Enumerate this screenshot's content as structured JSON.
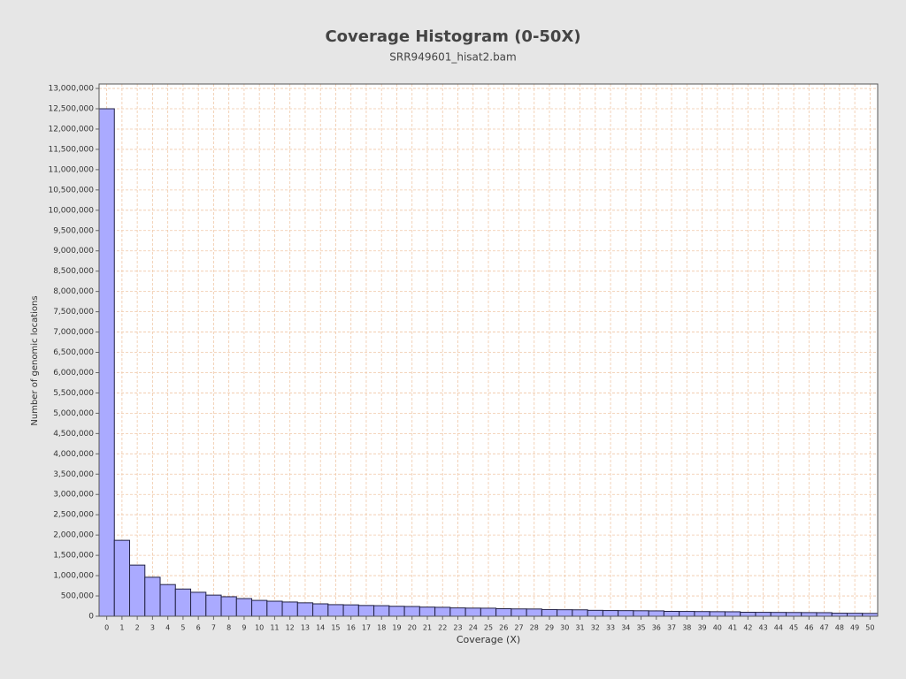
{
  "chart_data": {
    "type": "histogram",
    "title": "Coverage Histogram (0-50X)",
    "subtitle": "SRR949601_hisat2.bam",
    "x_label": "Coverage (X)",
    "y_label": "Number of genomic locations",
    "x": [
      0,
      1,
      2,
      3,
      4,
      5,
      6,
      7,
      8,
      9,
      10,
      11,
      12,
      13,
      14,
      15,
      16,
      17,
      18,
      19,
      20,
      21,
      22,
      23,
      24,
      25,
      26,
      27,
      28,
      29,
      30,
      31,
      32,
      33,
      34,
      35,
      36,
      37,
      38,
      39,
      40,
      41,
      42,
      43,
      44,
      45,
      46,
      47,
      48,
      49,
      50
    ],
    "values": [
      12500000,
      1870000,
      1260000,
      960000,
      780000,
      670000,
      590000,
      520000,
      480000,
      435000,
      390000,
      370000,
      350000,
      330000,
      305000,
      285000,
      280000,
      265000,
      260000,
      245000,
      240000,
      225000,
      220000,
      205000,
      200000,
      198000,
      185000,
      180000,
      178000,
      165000,
      160000,
      158000,
      145000,
      140000,
      138000,
      135000,
      132000,
      120000,
      118000,
      115000,
      112000,
      110000,
      98000,
      96000,
      94000,
      92000,
      90000,
      88000,
      75000,
      73000,
      70000
    ],
    "color": "#aaaaff",
    "xlim": [
      -0.5,
      50.5
    ],
    "xticks": [
      0,
      1,
      2,
      3,
      4,
      5,
      6,
      7,
      8,
      9,
      10,
      11,
      12,
      13,
      14,
      15,
      16,
      17,
      18,
      19,
      20,
      21,
      22,
      23,
      24,
      25,
      26,
      27,
      28,
      29,
      30,
      31,
      32,
      33,
      34,
      35,
      36,
      37,
      38,
      39,
      40,
      41,
      42,
      43,
      44,
      45,
      46,
      47,
      48,
      49,
      50
    ],
    "ylim": [
      0,
      13110000
    ],
    "yticks": [
      0,
      {
        "value": 500000,
        "label": "500,000"
      },
      {
        "value": 1000000,
        "label": "1,000,000"
      },
      {
        "value": 1500000,
        "label": "1,500,000"
      },
      {
        "value": 2000000,
        "label": "2,000,000"
      },
      {
        "value": 2500000,
        "label": "2,500,000"
      },
      {
        "value": 3000000,
        "label": "3,000,000"
      },
      {
        "value": 3500000,
        "label": "3,500,000"
      },
      {
        "value": 4000000,
        "label": "4,000,000"
      },
      {
        "value": 4500000,
        "label": "4,500,000"
      },
      {
        "value": 5000000,
        "label": "5,000,000"
      },
      {
        "value": 5500000,
        "label": "5,500,000"
      },
      {
        "value": 6000000,
        "label": "6,000,000"
      },
      {
        "value": 6500000,
        "label": "6,500,000"
      },
      {
        "value": 7000000,
        "label": "7,000,000"
      },
      {
        "value": 7500000,
        "label": "7,500,000"
      },
      {
        "value": 8000000,
        "label": "8,000,000"
      },
      {
        "value": 8500000,
        "label": "8,500,000"
      },
      {
        "value": 9000000,
        "label": "9,000,000"
      },
      {
        "value": 9500000,
        "label": "9,500,000"
      },
      {
        "value": 10000000,
        "label": "10,000,000"
      },
      {
        "value": 10500000,
        "label": "10,500,000"
      },
      {
        "value": 11000000,
        "label": "11,000,000"
      },
      {
        "value": 11500000,
        "label": "11,500,000"
      },
      {
        "value": 12000000,
        "label": "12,000,000"
      },
      {
        "value": 12500000,
        "label": "12,500,000"
      },
      {
        "value": 13000000,
        "label": "13,000,000"
      }
    ],
    "grid": true
  }
}
